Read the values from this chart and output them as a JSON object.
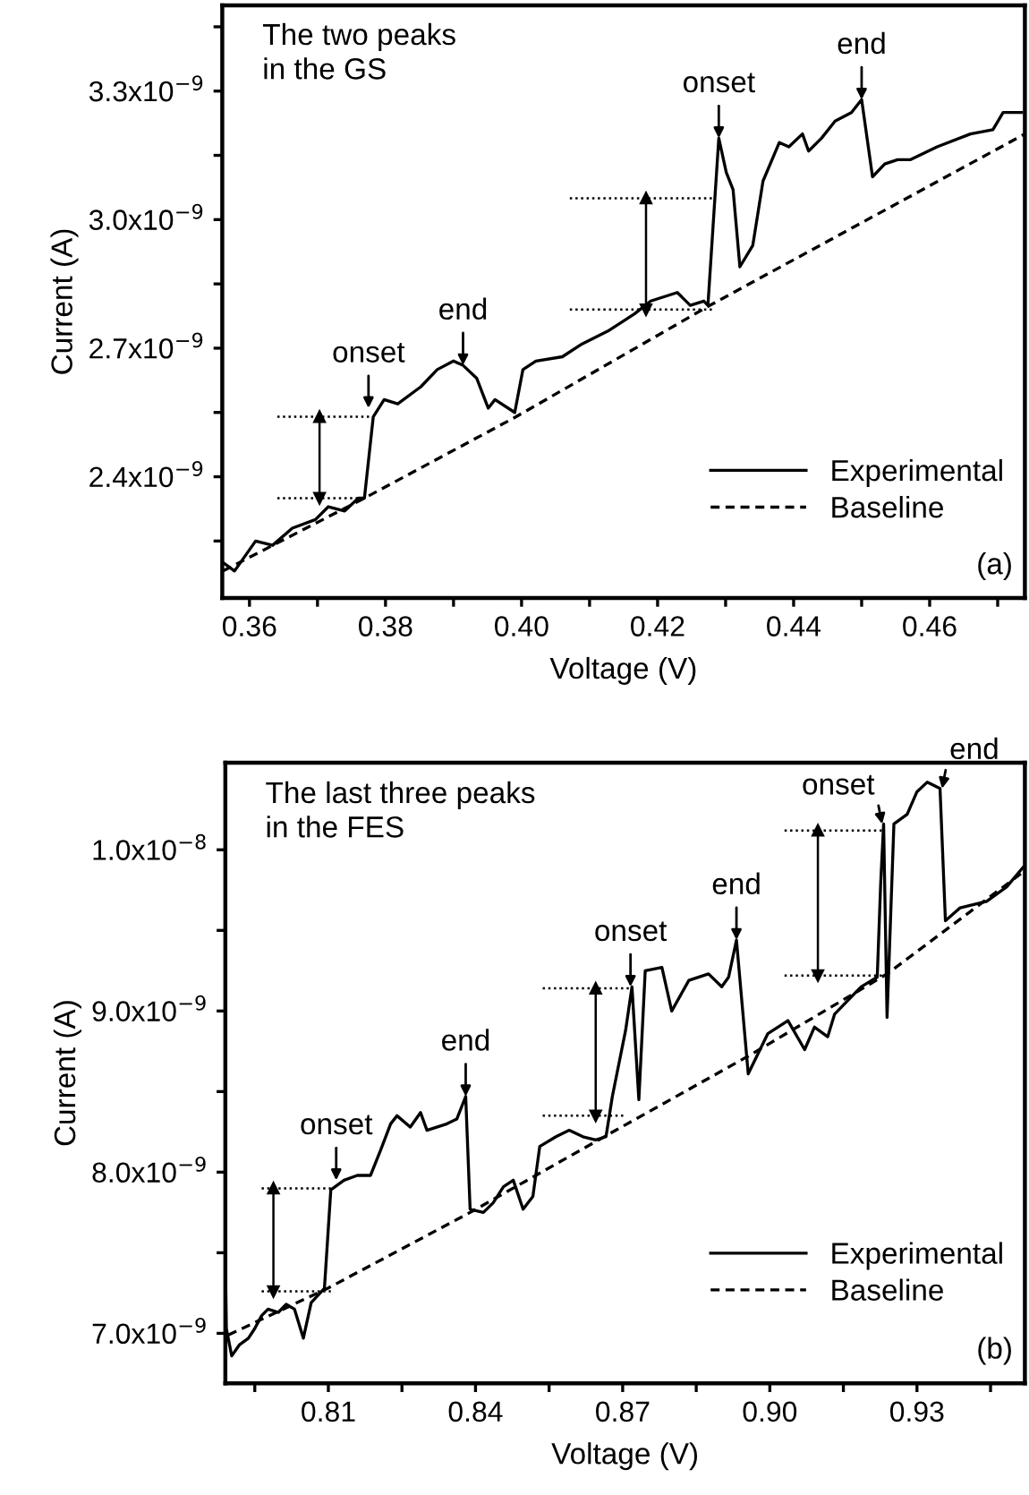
{
  "chart_data": [
    {
      "type": "line",
      "xlabel": "Voltage (V)",
      "ylabel": "Current (A)",
      "annotations": [
        "The two peaks\nin the GS",
        {
          "text": "onset",
          "x": 0.3775,
          "y": 2.56e-09
        },
        {
          "text": "end",
          "x": 0.3914,
          "y": 2.66e-09
        },
        {
          "text": "onset",
          "x": 0.429,
          "y": 3.19e-09
        },
        {
          "text": "end",
          "x": 0.45,
          "y": 3.28e-09
        },
        "(a)"
      ],
      "xlim": [
        0.356,
        0.474
      ],
      "ylim": [
        2.117e-09,
        3.5e-09
      ],
      "xticks": [
        0.36,
        {
          "value": 0.37,
          "label": null
        },
        0.38,
        {
          "value": 0.39,
          "label": null
        },
        {
          "value": 0.4,
          "label": "0.40"
        },
        {
          "value": 0.41,
          "label": null
        },
        0.42,
        {
          "value": 0.43,
          "label": null
        },
        0.44,
        {
          "value": 0.45,
          "label": null
        },
        0.46,
        {
          "value": 0.47,
          "label": null
        }
      ],
      "yticks": [
        {
          "value": 2.25e-09,
          "label": null
        },
        {
          "value": 2.4e-09,
          "label": "2.4x10$^{−9}$"
        },
        {
          "value": 2.55e-09,
          "label": null
        },
        {
          "value": 2.7e-09,
          "label": "2.7x10$^{−9}$"
        },
        {
          "value": 2.85e-09,
          "label": null
        },
        {
          "value": 3e-09,
          "label": "3.0x10$^{−9}$"
        },
        {
          "value": 3.15e-09,
          "label": null
        },
        {
          "value": 3.3e-09,
          "label": "3.3x10$^{−9}$"
        },
        {
          "value": 3.45e-09,
          "label": null
        }
      ],
      "legend": "lower right",
      "grid": false,
      "series": [
        {
          "name": "Experimental",
          "color": "#000000",
          "line_style": "solid",
          "x": [
            0.3561,
            0.3578,
            0.3609,
            0.3634,
            0.3663,
            0.3697,
            0.3716,
            0.374,
            0.376,
            0.3769,
            0.3782,
            0.3798,
            0.3818,
            0.3852,
            0.3876,
            0.39,
            0.3914,
            0.3934,
            0.3951,
            0.3961,
            0.399,
            0.4002,
            0.4021,
            0.406,
            0.4089,
            0.4127,
            0.4166,
            0.419,
            0.4229,
            0.4248,
            0.4268,
            0.4274,
            0.429,
            0.4301,
            0.4311,
            0.4321,
            0.434,
            0.4355,
            0.4379,
            0.4393,
            0.4413,
            0.4422,
            0.4441,
            0.4461,
            0.4485,
            0.45,
            0.4516,
            0.4534,
            0.4553,
            0.4572,
            0.4611,
            0.466,
            0.4693,
            0.4708,
            0.4735
          ],
          "values": [
            2.2e-09,
            2.18e-09,
            2.25e-09,
            2.24e-09,
            2.28e-09,
            2.3e-09,
            2.33e-09,
            2.32e-09,
            2.35e-09,
            2.35e-09,
            2.54e-09,
            2.58e-09,
            2.57e-09,
            2.61e-09,
            2.65e-09,
            2.67e-09,
            2.66e-09,
            2.63e-09,
            2.56e-09,
            2.58e-09,
            2.55e-09,
            2.65e-09,
            2.67e-09,
            2.68e-09,
            2.71e-09,
            2.74e-09,
            2.78e-09,
            2.81e-09,
            2.83e-09,
            2.8e-09,
            2.81e-09,
            2.8e-09,
            3.19e-09,
            3.11e-09,
            3.07e-09,
            2.89e-09,
            2.94e-09,
            3.09e-09,
            3.18e-09,
            3.17e-09,
            3.2e-09,
            3.16e-09,
            3.19e-09,
            3.23e-09,
            3.25e-09,
            3.28e-09,
            3.1e-09,
            3.13e-09,
            3.14e-09,
            3.14e-09,
            3.17e-09,
            3.2e-09,
            3.21e-09,
            3.25e-09,
            3.25e-09
          ]
        },
        {
          "name": "Baseline",
          "color": "#000000",
          "line_style": "dashed",
          "x": [
            0.3561,
            0.3769,
            0.3992,
            0.4277,
            0.474
          ],
          "values": [
            2.18e-09,
            2.35e-09,
            2.54e-09,
            2.8e-09,
            3.2e-09
          ]
        },
        {
          "color": "#000000",
          "line_style": "dotted",
          "x": [
            0.3641,
            0.376
          ],
          "values": [
            2.35e-09,
            2.35e-09
          ]
        },
        {
          "color": "#000000",
          "line_style": "dotted",
          "x": [
            0.3641,
            0.3778
          ],
          "values": [
            2.54e-09,
            2.54e-09
          ]
        },
        {
          "color": "#000000",
          "line_style": "solid",
          "marker": "triangle",
          "x": [
            0.3703,
            0.3703
          ],
          "values": [
            2.35e-09,
            2.54e-09
          ]
        },
        {
          "color": "#000000",
          "line_style": "dotted",
          "x": [
            0.4071,
            0.428
          ],
          "values": [
            2.79e-09,
            2.79e-09
          ]
        },
        {
          "color": "#000000",
          "line_style": "dotted",
          "x": [
            0.4071,
            0.4282
          ],
          "values": [
            3.05e-09,
            3.05e-09
          ]
        },
        {
          "color": "#000000",
          "line_style": "solid",
          "marker": "triangle",
          "x": [
            0.4183,
            0.4183
          ],
          "values": [
            2.79e-09,
            3.05e-09
          ]
        }
      ]
    },
    {
      "type": "line",
      "xlabel": "Voltage (V)",
      "ylabel": "Current (A)",
      "annotations": [
        "The last three peaks\nin the FES",
        {
          "text": "onset",
          "x": 0.8116,
          "y": 7.95e-09
        },
        {
          "text": "end",
          "x": 0.838,
          "y": 8.47e-09
        },
        {
          "text": "onset",
          "x": 0.8716,
          "y": 9.15e-09
        },
        {
          "text": "end",
          "x": 0.8932,
          "y": 9.44e-09
        },
        {
          "text": "onset",
          "x": 0.9229,
          "y": 1.016e-08
        },
        {
          "text": "end",
          "x": 0.9351,
          "y": 1.038e-08
        },
        "(b)"
      ],
      "xlim": [
        0.789,
        0.952
      ],
      "ylim": [
        6.69e-09,
        1.054e-08
      ],
      "xticks": [
        {
          "value": 0.795,
          "label": null
        },
        0.81,
        {
          "value": 0.825,
          "label": null
        },
        0.84,
        {
          "value": 0.855,
          "label": null
        },
        0.87,
        {
          "value": 0.885,
          "label": null
        },
        {
          "value": 0.9,
          "label": "0.90"
        },
        {
          "value": 0.915,
          "label": null
        },
        0.93,
        {
          "value": 0.945,
          "label": null
        }
      ],
      "yticks": [
        {
          "value": 7e-09,
          "label": "7.0x10$^{−9}$"
        },
        {
          "value": 7.5e-09,
          "label": null
        },
        {
          "value": 8e-09,
          "label": "8.0x10$^{−9}$"
        },
        {
          "value": 8.5e-09,
          "label": null
        },
        {
          "value": 9e-09,
          "label": "9.0x10$^{−9}$"
        },
        {
          "value": 9.5e-09,
          "label": null
        },
        {
          "value": 1e-08,
          "label": "1.0x10$^{−8}$"
        }
      ],
      "legend": "lower right",
      "grid": false,
      "series": [
        {
          "name": "Experimental",
          "color": "#000000",
          "line_style": "solid",
          "x": [
            0.789,
            0.7892,
            0.7903,
            0.7919,
            0.7937,
            0.795,
            0.7964,
            0.7977,
            0.7998,
            0.8014,
            0.8031,
            0.8049,
            0.8065,
            0.8092,
            0.8105,
            0.8132,
            0.8159,
            0.8186,
            0.8207,
            0.8227,
            0.824,
            0.8267,
            0.8288,
            0.8301,
            0.8342,
            0.8362,
            0.838,
            0.8389,
            0.8416,
            0.8436,
            0.8457,
            0.8477,
            0.8497,
            0.8517,
            0.8531,
            0.8564,
            0.8591,
            0.8619,
            0.8645,
            0.8666,
            0.8679,
            0.8706,
            0.8719,
            0.8733,
            0.8746,
            0.878,
            0.88,
            0.8835,
            0.8875,
            0.8902,
            0.8916,
            0.8932,
            0.8956,
            0.8996,
            0.9037,
            0.9071,
            0.9091,
            0.9118,
            0.9132,
            0.9186,
            0.9219,
            0.9226,
            0.9232,
            0.9239,
            0.9253,
            0.928,
            0.93,
            0.9321,
            0.9347,
            0.9358,
            0.9388,
            0.9442,
            0.9483,
            0.9516
          ],
          "values": [
            7.48e-09,
            7.03e-09,
            6.86e-09,
            6.93e-09,
            6.97e-09,
            7.03e-09,
            7.11e-09,
            7.15e-09,
            7.13e-09,
            7.18e-09,
            7.15e-09,
            6.97e-09,
            7.19e-09,
            7.28e-09,
            7.89e-09,
            7.95e-09,
            7.98e-09,
            7.98e-09,
            8.14e-09,
            8.3e-09,
            8.35e-09,
            8.28e-09,
            8.37e-09,
            8.26e-09,
            8.3e-09,
            8.33e-09,
            8.47e-09,
            7.77e-09,
            7.75e-09,
            7.81e-09,
            7.91e-09,
            7.95e-09,
            7.77e-09,
            7.85e-09,
            8.16e-09,
            8.22e-09,
            8.26e-09,
            8.22e-09,
            8.2e-09,
            8.22e-09,
            8.47e-09,
            8.88e-09,
            9.15e-09,
            8.45e-09,
            9.25e-09,
            9.27e-09,
            9e-09,
            9.19e-09,
            9.23e-09,
            9.15e-09,
            9.21e-09,
            9.44e-09,
            8.61e-09,
            8.86e-09,
            8.94e-09,
            8.76e-09,
            8.9e-09,
            8.84e-09,
            8.98e-09,
            9.15e-09,
            9.21e-09,
            9.79e-09,
            1.016e-08,
            8.96e-09,
            1.016e-08,
            1.022e-08,
            1.036e-08,
            1.042e-08,
            1.038e-08,
            9.56e-09,
            9.64e-09,
            9.68e-09,
            9.77e-09,
            9.89e-09
          ]
        },
        {
          "name": "Baseline",
          "color": "#000000",
          "line_style": "dashed",
          "x": [
            0.7896,
            0.8099,
            0.8389,
            0.8686,
            0.8956,
            0.9239,
            0.952
          ],
          "values": [
            6.99e-09,
            7.28e-09,
            7.75e-09,
            8.26e-09,
            8.72e-09,
            9.23e-09,
            9.87e-09
          ]
        },
        {
          "color": "#000000",
          "line_style": "dotted",
          "x": [
            0.7964,
            0.8105
          ],
          "values": [
            7.26e-09,
            7.26e-09
          ]
        },
        {
          "color": "#000000",
          "line_style": "dotted",
          "x": [
            0.7964,
            0.8105
          ],
          "values": [
            7.9e-09,
            7.9e-09
          ]
        },
        {
          "color": "#000000",
          "line_style": "solid",
          "marker": "triangle",
          "x": [
            0.7988,
            0.7988
          ],
          "values": [
            7.26e-09,
            7.9e-09
          ]
        },
        {
          "color": "#000000",
          "line_style": "dotted",
          "x": [
            0.8537,
            0.8706
          ],
          "values": [
            8.35e-09,
            8.35e-09
          ]
        },
        {
          "color": "#000000",
          "line_style": "dotted",
          "x": [
            0.8537,
            0.8719
          ],
          "values": [
            9.14e-09,
            9.14e-09
          ]
        },
        {
          "color": "#000000",
          "line_style": "solid",
          "marker": "triangle",
          "x": [
            0.8645,
            0.8645
          ],
          "values": [
            8.35e-09,
            9.14e-09
          ]
        },
        {
          "color": "#000000",
          "line_style": "dotted",
          "x": [
            0.903,
            0.9232
          ],
          "values": [
            9.22e-09,
            9.22e-09
          ]
        },
        {
          "color": "#000000",
          "line_style": "dotted",
          "x": [
            0.903,
            0.9232
          ],
          "values": [
            1.012e-08,
            1.012e-08
          ]
        },
        {
          "color": "#000000",
          "line_style": "solid",
          "marker": "triangle",
          "x": [
            0.9098,
            0.9098
          ],
          "values": [
            9.22e-09,
            1.012e-08
          ]
        }
      ]
    }
  ]
}
